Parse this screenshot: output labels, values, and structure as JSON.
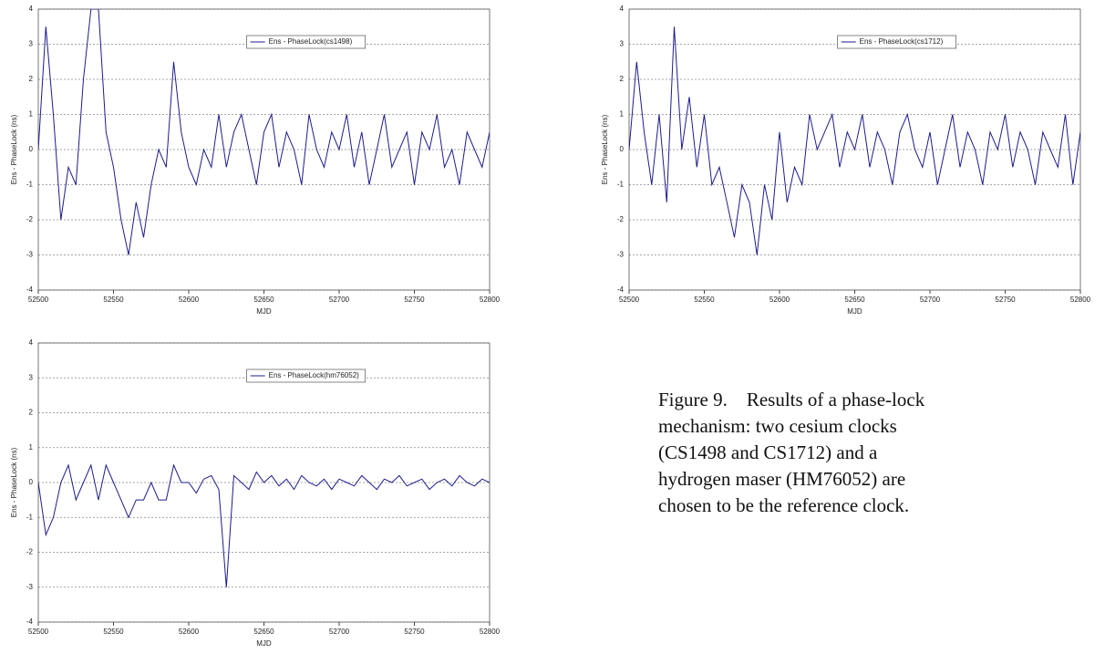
{
  "chart_data": [
    {
      "type": "line",
      "ylabel": "Ens - PhaseLock (ns)",
      "xlabel": "MJD",
      "x": [
        52500,
        52505,
        52510,
        52515,
        52520,
        52525,
        52530,
        52535,
        52540,
        52545,
        52550,
        52555,
        52560,
        52565,
        52570,
        52575,
        52580,
        52585,
        52590,
        52595,
        52600,
        52605,
        52610,
        52615,
        52620,
        52625,
        52630,
        52635,
        52640,
        52645,
        52650,
        52655,
        52660,
        52665,
        52670,
        52675,
        52680,
        52685,
        52690,
        52695,
        52700,
        52705,
        52710,
        52715,
        52720,
        52725,
        52730,
        52735,
        52740,
        52745,
        52750,
        52755,
        52760,
        52765,
        52770,
        52775,
        52780,
        52785,
        52790,
        52795,
        52800
      ],
      "series": [
        {
          "name": "Ens - PhaseLock(cs1498)",
          "color": "#1c1c8c",
          "values": [
            0,
            3.5,
            1,
            -2,
            -0.5,
            -1,
            2,
            4,
            4,
            0.5,
            -0.5,
            -2,
            -3,
            -1.5,
            -2.5,
            -1,
            0,
            -0.5,
            2.5,
            0.5,
            -0.5,
            -1,
            0,
            -0.5,
            1,
            -0.5,
            0.5,
            1,
            0,
            -1,
            0.5,
            1,
            -0.5,
            0.5,
            0,
            -1,
            1,
            0,
            -0.5,
            0.5,
            0,
            1,
            -0.5,
            0.5,
            -1,
            0,
            1,
            -0.5,
            0,
            0.5,
            -1,
            0.5,
            0,
            1,
            -0.5,
            0,
            -1,
            0.5,
            0,
            -0.5,
            0.5
          ]
        }
      ],
      "xlim": [
        52500,
        52800
      ],
      "ylim": [
        -4,
        4
      ],
      "xticks": [
        52500,
        52550,
        52600,
        52650,
        52700,
        52750,
        52800
      ],
      "yticks": [
        -4,
        -3,
        -2,
        -1,
        0,
        1,
        2,
        3,
        4
      ],
      "grid": true
    },
    {
      "type": "line",
      "ylabel": "Ens - PhaseLock (ns)",
      "xlabel": "MJD",
      "x": [
        52500,
        52505,
        52510,
        52515,
        52520,
        52525,
        52530,
        52535,
        52540,
        52545,
        52550,
        52555,
        52560,
        52565,
        52570,
        52575,
        52580,
        52585,
        52590,
        52595,
        52600,
        52605,
        52610,
        52615,
        52620,
        52625,
        52630,
        52635,
        52640,
        52645,
        52650,
        52655,
        52660,
        52665,
        52670,
        52675,
        52680,
        52685,
        52690,
        52695,
        52700,
        52705,
        52710,
        52715,
        52720,
        52725,
        52730,
        52735,
        52740,
        52745,
        52750,
        52755,
        52760,
        52765,
        52770,
        52775,
        52780,
        52785,
        52790,
        52795,
        52800
      ],
      "series": [
        {
          "name": "Ens - PhaseLock(cs1712)",
          "color": "#1c1c8c",
          "values": [
            0,
            2.5,
            0.5,
            -1,
            1,
            -1.5,
            3.5,
            0,
            1.5,
            -0.5,
            1,
            -1,
            -0.5,
            -1.5,
            -2.5,
            -1,
            -1.5,
            -3,
            -1,
            -2,
            0.5,
            -1.5,
            -0.5,
            -1,
            1,
            0,
            0.5,
            1,
            -0.5,
            0.5,
            0,
            1,
            -0.5,
            0.5,
            0,
            -1,
            0.5,
            1,
            0,
            -0.5,
            0.5,
            -1,
            0,
            1,
            -0.5,
            0.5,
            0,
            -1,
            0.5,
            0,
            1,
            -0.5,
            0.5,
            0,
            -1,
            0.5,
            0,
            -0.5,
            1,
            -1,
            0.5
          ]
        }
      ],
      "xlim": [
        52500,
        52800
      ],
      "ylim": [
        -4,
        4
      ],
      "xticks": [
        52500,
        52550,
        52600,
        52650,
        52700,
        52750,
        52800
      ],
      "yticks": [
        -4,
        -3,
        -2,
        -1,
        0,
        1,
        2,
        3,
        4
      ],
      "grid": true
    },
    {
      "type": "line",
      "ylabel": "Ens - PhaseLock (ns)",
      "xlabel": "MJD",
      "x": [
        52500,
        52505,
        52510,
        52515,
        52520,
        52525,
        52530,
        52535,
        52540,
        52545,
        52550,
        52555,
        52560,
        52565,
        52570,
        52575,
        52580,
        52585,
        52590,
        52595,
        52600,
        52605,
        52610,
        52615,
        52620,
        52625,
        52630,
        52635,
        52640,
        52645,
        52650,
        52655,
        52660,
        52665,
        52670,
        52675,
        52680,
        52685,
        52690,
        52695,
        52700,
        52705,
        52710,
        52715,
        52720,
        52725,
        52730,
        52735,
        52740,
        52745,
        52750,
        52755,
        52760,
        52765,
        52770,
        52775,
        52780,
        52785,
        52790,
        52795,
        52800
      ],
      "series": [
        {
          "name": "Ens - PhaseLock(hm76052)",
          "color": "#1c1c8c",
          "values": [
            0,
            -1.5,
            -1,
            0,
            0.5,
            -0.5,
            0,
            0.5,
            -0.5,
            0.5,
            0,
            -0.5,
            -1,
            -0.5,
            -0.5,
            0,
            -0.5,
            -0.5,
            0.5,
            0,
            0,
            -0.3,
            0.1,
            0.2,
            -0.2,
            -3,
            0.2,
            0,
            -0.2,
            0.3,
            0,
            0.2,
            -0.1,
            0.1,
            -0.2,
            0.2,
            0,
            -0.1,
            0.1,
            -0.2,
            0.1,
            0,
            -0.1,
            0.2,
            0,
            -0.2,
            0.1,
            0,
            0.2,
            -0.1,
            0,
            0.1,
            -0.2,
            0,
            0.1,
            -0.1,
            0.2,
            0,
            -0.1,
            0.1,
            0
          ]
        }
      ],
      "xlim": [
        52500,
        52800
      ],
      "ylim": [
        -4,
        4
      ],
      "xticks": [
        52500,
        52550,
        52600,
        52650,
        52700,
        52750,
        52800
      ],
      "yticks": [
        -4,
        -3,
        -2,
        -1,
        0,
        1,
        2,
        3,
        4
      ],
      "grid": true
    }
  ],
  "caption": "Figure 9.    Results of a phase-lock mechanism: two cesium clocks (CS1498 and CS1712) and a hydrogen maser (HM76052) are chosen to be the reference clock."
}
